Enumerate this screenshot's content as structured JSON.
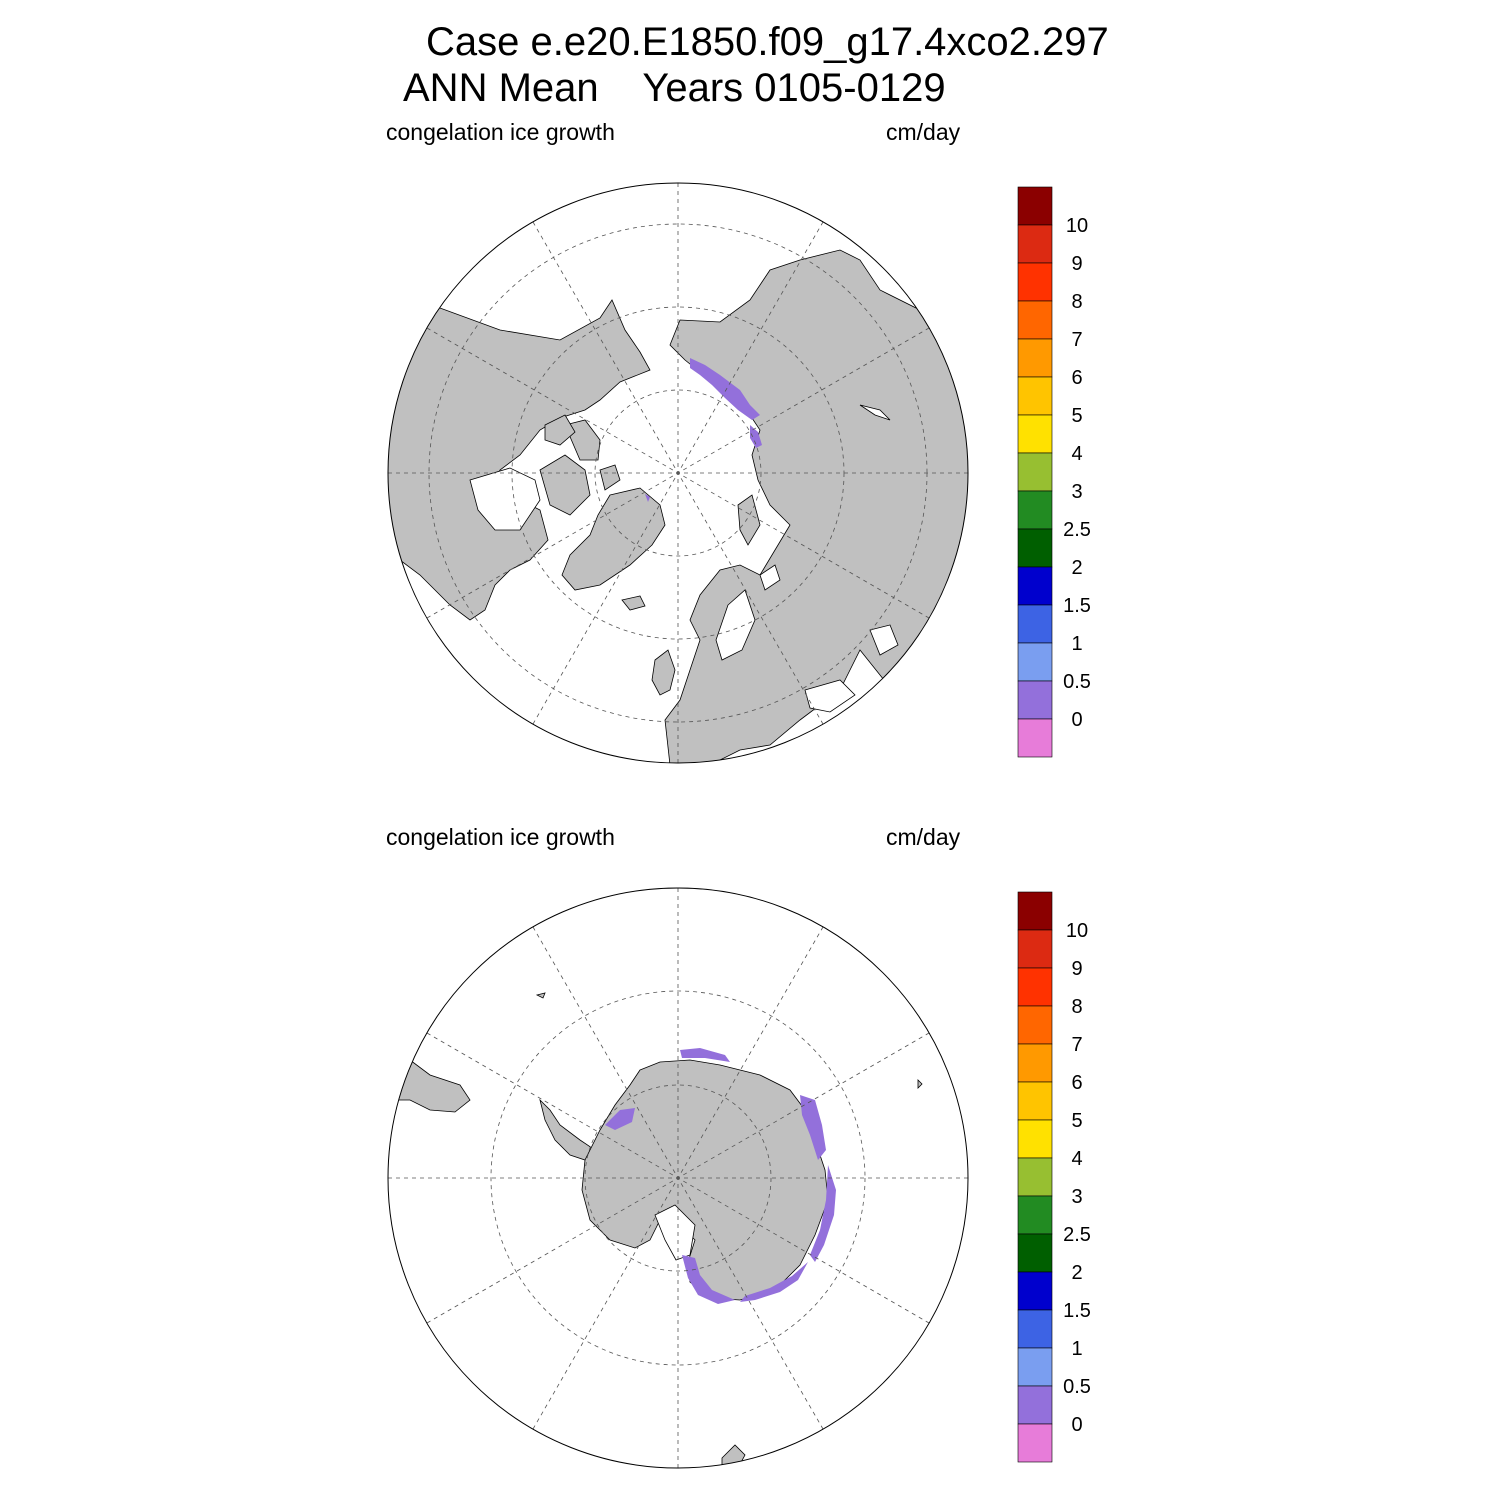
{
  "title": {
    "line1": "Case e.e20.E1850.f09_g17.4xco2.297",
    "line2": "ANN Mean    Years 0105-0129"
  },
  "panels": [
    {
      "id": "north",
      "hemisphere": "Northern Hemisphere",
      "left_label": "congelation ice growth",
      "right_label": "cm/day"
    },
    {
      "id": "south",
      "hemisphere": "Southern Hemisphere",
      "left_label": "congelation ice growth",
      "right_label": "cm/day"
    }
  ],
  "colorbar": {
    "labels": [
      "10",
      "9",
      "8",
      "7",
      "6",
      "5",
      "4",
      "3",
      "2.5",
      "2",
      "1.5",
      "1",
      "0.5",
      "0"
    ],
    "colors_top_to_bottom": [
      "#8b0000",
      "#dc2a12",
      "#ff3200",
      "#ff6600",
      "#ff9900",
      "#ffc400",
      "#ffe100",
      "#97bf31",
      "#228b22",
      "#005f00",
      "#0000cd",
      "#3d63e4",
      "#7a9ef0",
      "#9370db",
      "#e77cd9"
    ]
  },
  "colors": {
    "land": "#c0c0c0",
    "ocean": "#ffffff",
    "ice_growth_low": "#9370db"
  }
}
